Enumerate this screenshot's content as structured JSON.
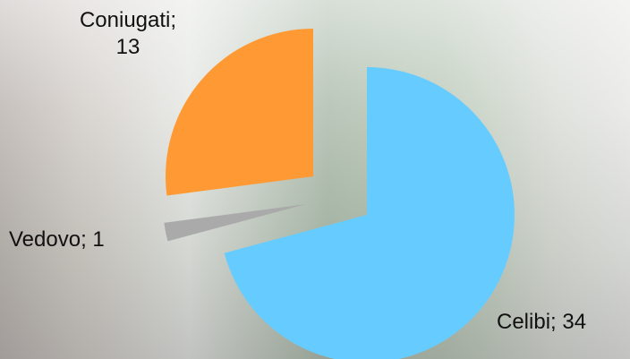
{
  "chart_data": {
    "type": "pie",
    "categories": [
      "Celibi",
      "Vedovo",
      "Coniugati"
    ],
    "values": [
      34,
      1,
      13
    ],
    "value_labels": [
      "Celibi; 34",
      "Vedovo; 1",
      "Coniugati; 13"
    ],
    "colors": [
      "#66ccff",
      "#aaaaaa",
      "#ff9933"
    ]
  }
}
